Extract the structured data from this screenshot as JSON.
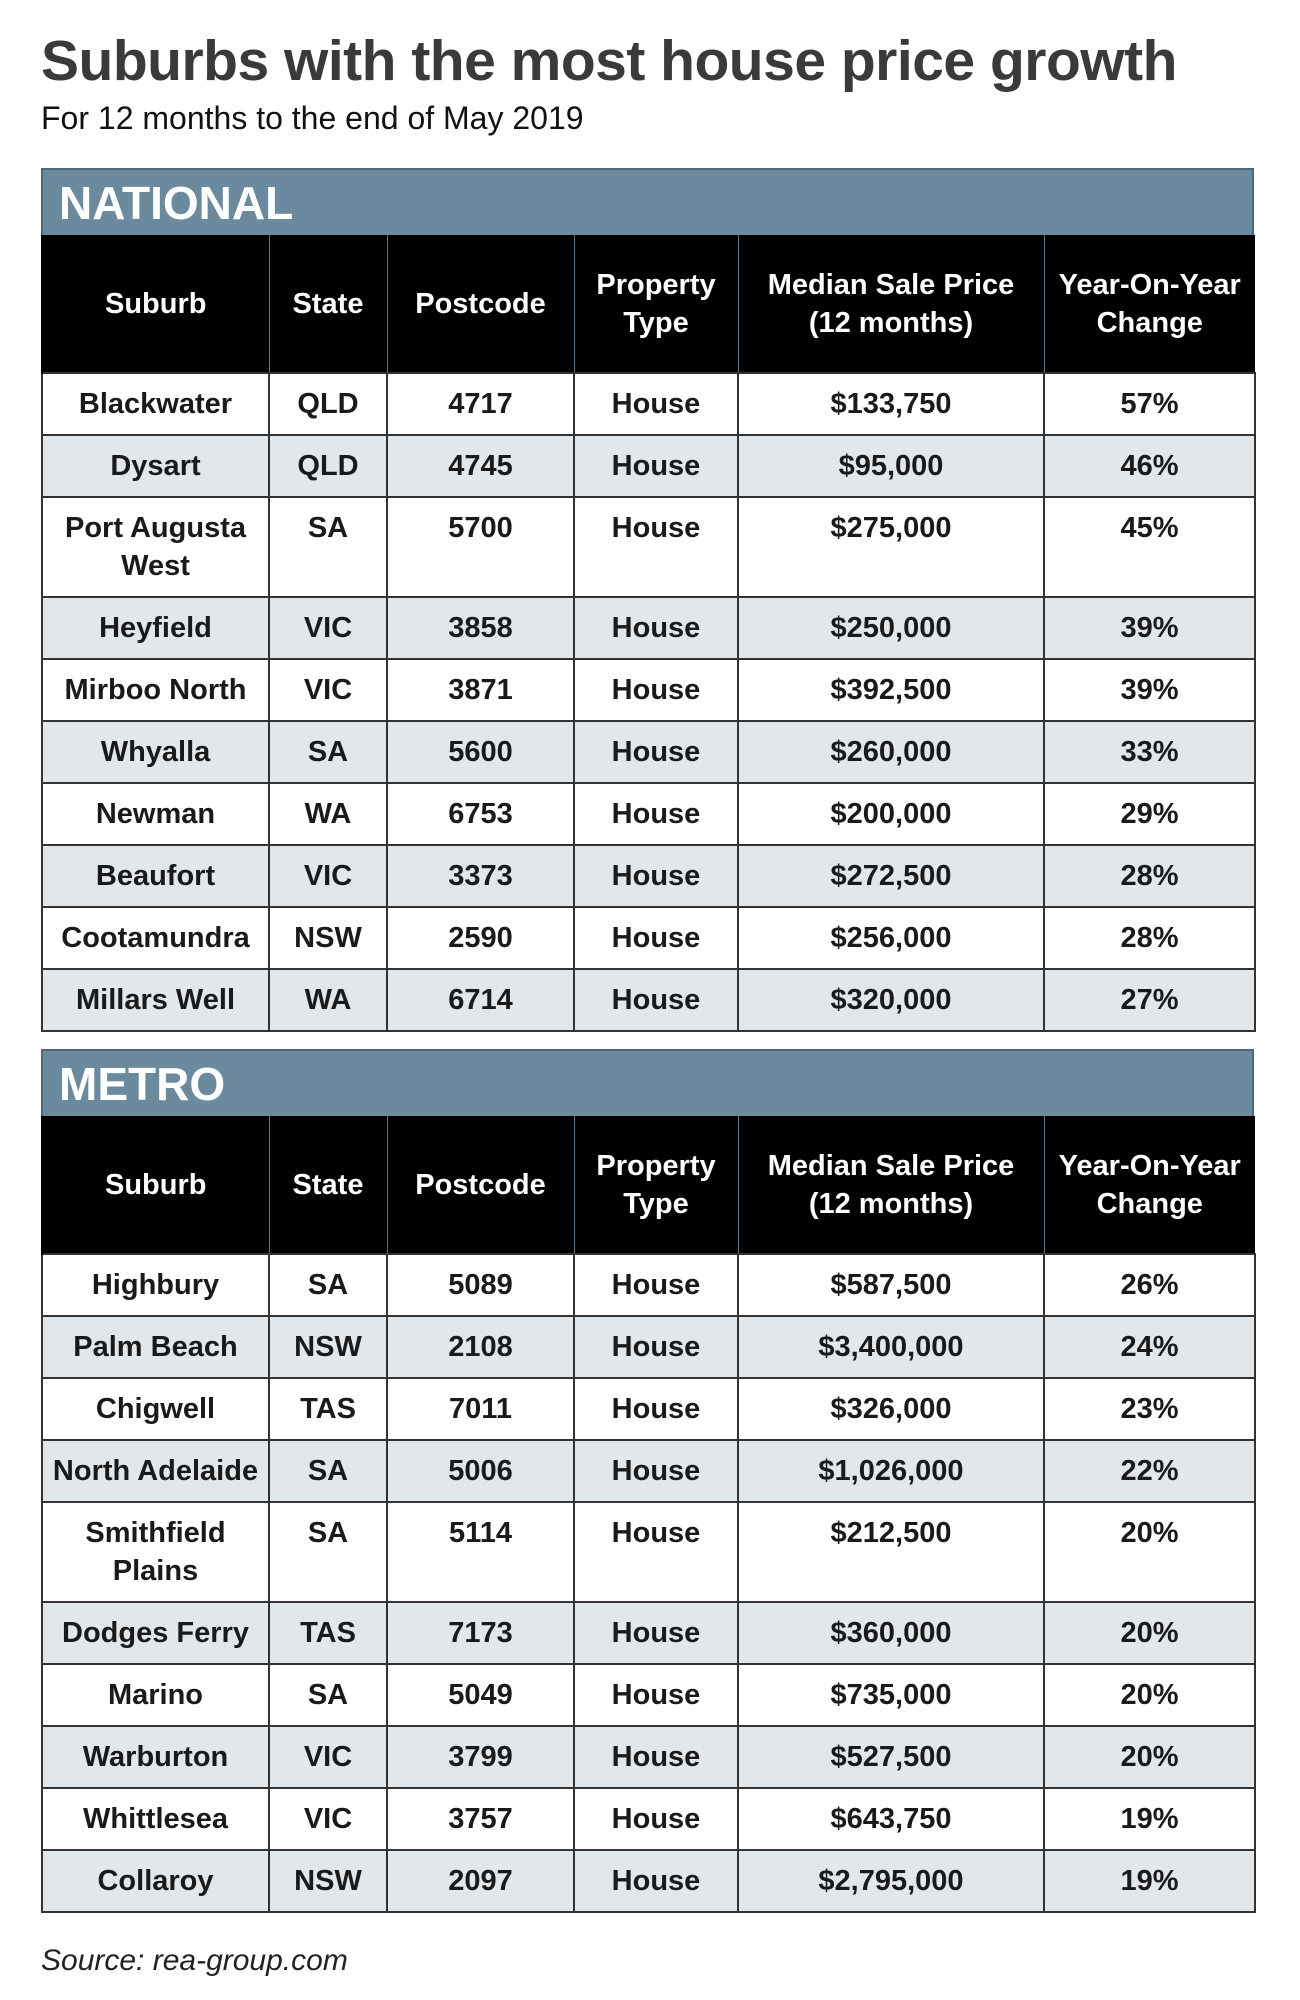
{
  "header": {
    "title": "Suburbs with the most house price growth",
    "subtitle": "For 12 months to the end of May 2019"
  },
  "tables": [
    {
      "title": "NATIONAL",
      "columns": [
        "Suburb",
        "State",
        "Postcode",
        "Property Type",
        "Median Sale Price (12 months)",
        "Year-On-Year Change"
      ],
      "rows": [
        [
          "Blackwater",
          "QLD",
          "4717",
          "House",
          "$133,750",
          "57%"
        ],
        [
          "Dysart",
          "QLD",
          "4745",
          "House",
          "$95,000",
          "46%"
        ],
        [
          "Port Augusta West",
          "SA",
          "5700",
          "House",
          "$275,000",
          "45%"
        ],
        [
          "Heyfield",
          "VIC",
          "3858",
          "House",
          "$250,000",
          "39%"
        ],
        [
          "Mirboo North",
          "VIC",
          "3871",
          "House",
          "$392,500",
          "39%"
        ],
        [
          "Whyalla",
          "SA",
          "5600",
          "House",
          "$260,000",
          "33%"
        ],
        [
          "Newman",
          "WA",
          "6753",
          "House",
          "$200,000",
          "29%"
        ],
        [
          "Beaufort",
          "VIC",
          "3373",
          "House",
          "$272,500",
          "28%"
        ],
        [
          "Cootamundra",
          "NSW",
          "2590",
          "House",
          "$256,000",
          "28%"
        ],
        [
          "Millars Well",
          "WA",
          "6714",
          "House",
          "$320,000",
          "27%"
        ]
      ]
    },
    {
      "title": "METRO",
      "columns": [
        "Suburb",
        "State",
        "Postcode",
        "Property Type",
        "Median Sale Price (12 months)",
        "Year-On-Year Change"
      ],
      "rows": [
        [
          "Highbury",
          "SA",
          "5089",
          "House",
          "$587,500",
          "26%"
        ],
        [
          "Palm Beach",
          "NSW",
          "2108",
          "House",
          "$3,400,000",
          "24%"
        ],
        [
          "Chigwell",
          "TAS",
          "7011",
          "House",
          "$326,000",
          "23%"
        ],
        [
          "North Adelaide",
          "SA",
          "5006",
          "House",
          "$1,026,000",
          "22%"
        ],
        [
          "Smithfield Plains",
          "SA",
          "5114",
          "House",
          "$212,500",
          "20%"
        ],
        [
          "Dodges Ferry",
          "TAS",
          "7173",
          "House",
          "$360,000",
          "20%"
        ],
        [
          "Marino",
          "SA",
          "5049",
          "House",
          "$735,000",
          "20%"
        ],
        [
          "Warburton",
          "VIC",
          "3799",
          "House",
          "$527,500",
          "20%"
        ],
        [
          "Whittlesea",
          "VIC",
          "3757",
          "House",
          "$643,750",
          "19%"
        ],
        [
          "Collaroy",
          "NSW",
          "2097",
          "House",
          "$2,795,000",
          "19%"
        ]
      ]
    }
  ],
  "source": "Source: rea-group.com"
}
